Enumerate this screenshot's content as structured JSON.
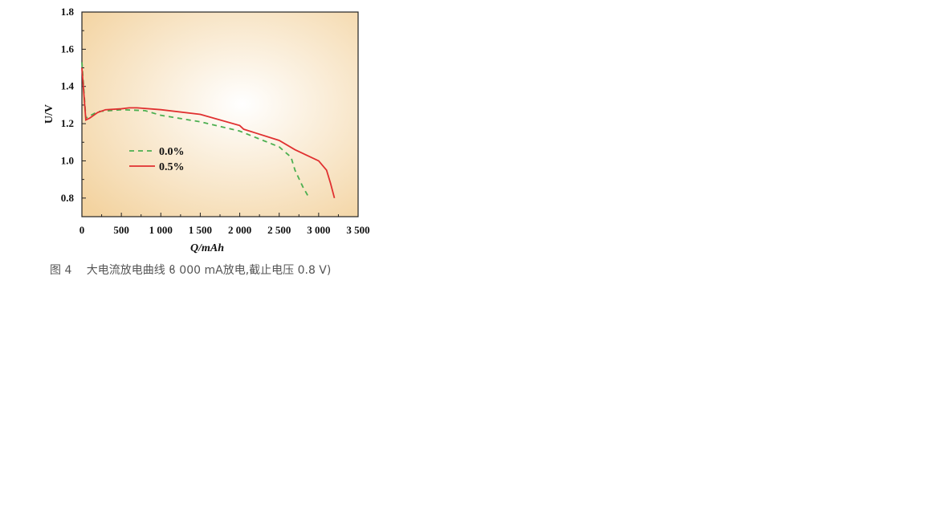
{
  "chart_data": {
    "type": "line",
    "title": "",
    "xlabel": "Q/mAh",
    "ylabel": "U/V",
    "xlim": [
      0,
      3500
    ],
    "ylim": [
      0.7,
      1.8
    ],
    "xticks": [
      0,
      500,
      1000,
      1500,
      2000,
      2500,
      3000,
      3500
    ],
    "xtick_labels": [
      "0",
      "500",
      "1 000",
      "1 500",
      "2 000",
      "2 500",
      "3 000",
      "3 500"
    ],
    "yticks": [
      0.8,
      1.0,
      1.2,
      1.4,
      1.6,
      1.8
    ],
    "ytick_labels": [
      "0.8",
      "1.0",
      "1.2",
      "1.4",
      "1.6",
      "1.8"
    ],
    "grid": false,
    "legend_placement": "center-left",
    "series": [
      {
        "name": "0.0%",
        "color": "#4caf50",
        "style": "dashed",
        "x": [
          0,
          50,
          200,
          500,
          800,
          1000,
          1500,
          2000,
          2500,
          2650,
          2700,
          2800,
          2880
        ],
        "y": [
          1.53,
          1.23,
          1.265,
          1.275,
          1.27,
          1.245,
          1.21,
          1.16,
          1.075,
          1.02,
          0.95,
          0.86,
          0.8
        ]
      },
      {
        "name": "0.5%",
        "color": "#e03030",
        "style": "solid",
        "x": [
          0,
          50,
          100,
          200,
          300,
          500,
          600,
          700,
          1000,
          1500,
          2000,
          2050,
          2200,
          2500,
          2700,
          2800,
          3000,
          3100,
          3150,
          3200
        ],
        "y": [
          1.5,
          1.22,
          1.23,
          1.26,
          1.275,
          1.28,
          1.285,
          1.285,
          1.275,
          1.25,
          1.19,
          1.17,
          1.15,
          1.11,
          1.06,
          1.04,
          1.0,
          0.95,
          0.88,
          0.8
        ]
      }
    ]
  },
  "caption": "图 4　 大电流放电曲线 ϐ 000 mA放电,截止电压 0.8 V)"
}
